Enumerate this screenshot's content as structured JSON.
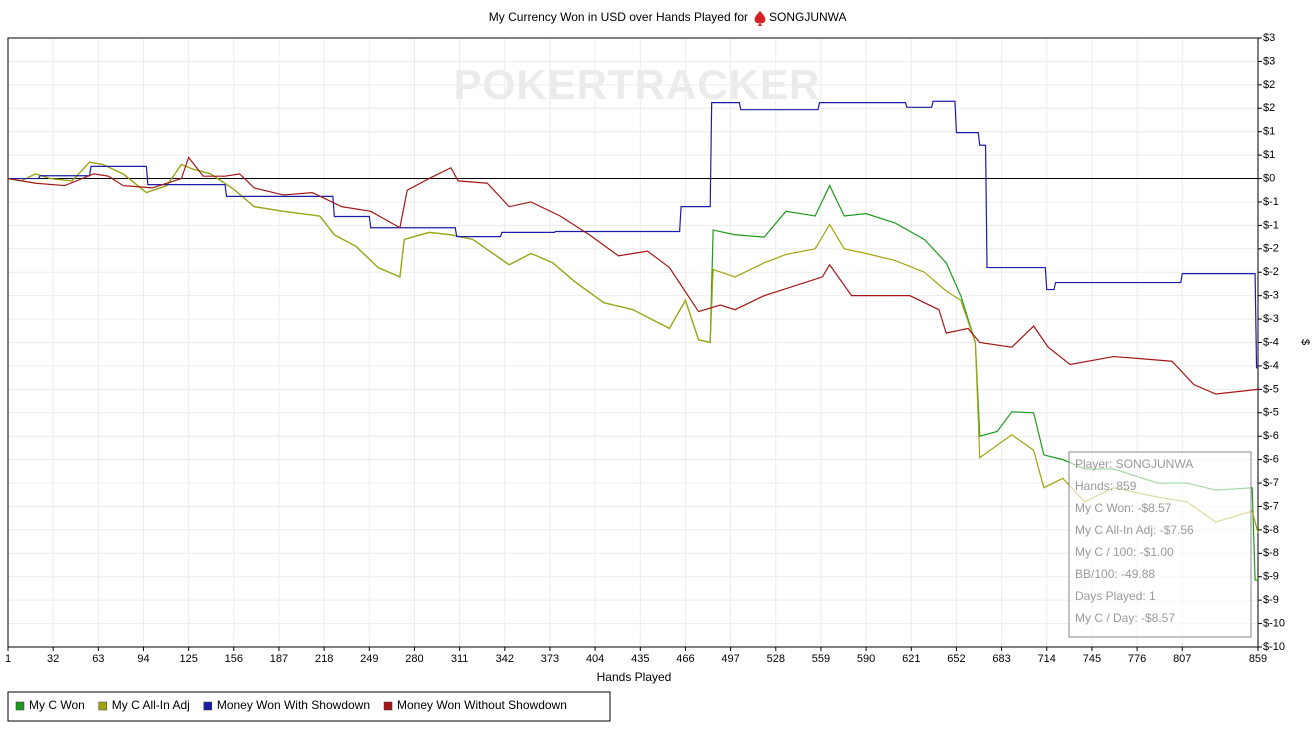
{
  "chart_data": {
    "type": "line",
    "title": "My Currency Won in USD over Hands Played for",
    "player": "SONGJUNWA",
    "watermark": "POKERTRACKER",
    "x_label": "Hands Played",
    "y_label": "$",
    "xlim": [
      1,
      859
    ],
    "ylim": [
      -10,
      3
    ],
    "xticks": [
      1,
      32,
      63,
      94,
      125,
      156,
      187,
      218,
      249,
      280,
      311,
      342,
      373,
      404,
      435,
      466,
      497,
      528,
      559,
      590,
      621,
      652,
      683,
      714,
      745,
      776,
      807,
      859
    ],
    "yticks": [
      {
        "value": 3,
        "label": "$3"
      },
      {
        "value": 2.5,
        "label": "$3"
      },
      {
        "value": 2,
        "label": "$2"
      },
      {
        "value": 1.5,
        "label": "$2"
      },
      {
        "value": 1,
        "label": "$1"
      },
      {
        "value": 0.5,
        "label": "$1"
      },
      {
        "value": 0,
        "label": "$0"
      },
      {
        "value": -0.5,
        "label": "$-1"
      },
      {
        "value": -1,
        "label": "$-1"
      },
      {
        "value": -1.5,
        "label": "$-2"
      },
      {
        "value": -2,
        "label": "$-2"
      },
      {
        "value": -2.5,
        "label": "$-3"
      },
      {
        "value": -3,
        "label": "$-3"
      },
      {
        "value": -3.5,
        "label": "$-4"
      },
      {
        "value": -4,
        "label": "$-4"
      },
      {
        "value": -4.5,
        "label": "$-5"
      },
      {
        "value": -5,
        "label": "$-5"
      },
      {
        "value": -5.5,
        "label": "$-6"
      },
      {
        "value": -6,
        "label": "$-6"
      },
      {
        "value": -6.5,
        "label": "$-7"
      },
      {
        "value": -7,
        "label": "$-7"
      },
      {
        "value": -7.5,
        "label": "$-8"
      },
      {
        "value": -8,
        "label": "$-8"
      },
      {
        "value": -8.5,
        "label": "$-9"
      },
      {
        "value": -9,
        "label": "$-9"
      },
      {
        "value": -9.5,
        "label": "$-10"
      },
      {
        "value": -10,
        "label": "$-10"
      }
    ],
    "grid": true,
    "legend": "bottom-left",
    "series": [
      {
        "name": "My C Won",
        "color": "#1e9a1e",
        "x": [
          1,
          10,
          20,
          30,
          45,
          57,
          66,
          80,
          96,
          110,
          120,
          128,
          140,
          156,
          170,
          190,
          215,
          225,
          240,
          255,
          270,
          273,
          290,
          305,
          320,
          345,
          360,
          375,
          390,
          410,
          430,
          455,
          466,
          475,
          483,
          485,
          500,
          520,
          535,
          555,
          565,
          575,
          590,
          610,
          630,
          645,
          655,
          665,
          668,
          680,
          690,
          705,
          712,
          725,
          740,
          760,
          790,
          810,
          830,
          855,
          857,
          859
        ],
        "values": [
          0,
          -0.05,
          0.1,
          0,
          -0.05,
          0.35,
          0.3,
          0.1,
          -0.3,
          -0.15,
          0.3,
          0.2,
          0.1,
          -0.23,
          -0.6,
          -0.7,
          -0.8,
          -1.2,
          -1.45,
          -1.9,
          -2.1,
          -1.3,
          -1.15,
          -1.2,
          -1.3,
          -1.84,
          -1.6,
          -1.8,
          -2.2,
          -2.65,
          -2.8,
          -3.2,
          -2.6,
          -3.44,
          -3.5,
          -1.1,
          -1.2,
          -1.25,
          -0.7,
          -0.8,
          -0.15,
          -0.8,
          -0.75,
          -0.95,
          -1.3,
          -1.8,
          -2.5,
          -3.5,
          -5.5,
          -5.4,
          -4.98,
          -5.0,
          -5.9,
          -6.0,
          -6.2,
          -6.2,
          -6.5,
          -6.5,
          -6.65,
          -6.6,
          -8.57,
          -8.57
        ]
      },
      {
        "name": "My C All-In Adj",
        "color": "#a4a40c",
        "x": [
          1,
          10,
          20,
          30,
          45,
          57,
          66,
          80,
          96,
          110,
          120,
          128,
          140,
          156,
          170,
          190,
          215,
          225,
          240,
          255,
          270,
          273,
          290,
          305,
          320,
          345,
          360,
          375,
          390,
          410,
          430,
          455,
          466,
          475,
          483,
          485,
          500,
          520,
          535,
          555,
          565,
          575,
          590,
          610,
          630,
          645,
          655,
          665,
          668,
          690,
          705,
          712,
          725,
          740,
          760,
          790,
          810,
          830,
          855,
          859
        ],
        "values": [
          0,
          -0.05,
          0.1,
          0,
          -0.05,
          0.35,
          0.3,
          0.1,
          -0.3,
          -0.15,
          0.3,
          0.2,
          0.1,
          -0.23,
          -0.6,
          -0.7,
          -0.8,
          -1.2,
          -1.45,
          -1.9,
          -2.1,
          -1.3,
          -1.15,
          -1.2,
          -1.3,
          -1.84,
          -1.6,
          -1.8,
          -2.2,
          -2.65,
          -2.8,
          -3.2,
          -2.6,
          -3.44,
          -3.5,
          -1.94,
          -2.1,
          -1.8,
          -1.62,
          -1.5,
          -0.98,
          -1.5,
          -1.6,
          -1.75,
          -2.0,
          -2.4,
          -2.6,
          -3.5,
          -5.96,
          -5.47,
          -5.8,
          -6.6,
          -6.4,
          -6.9,
          -6.6,
          -6.8,
          -6.9,
          -7.33,
          -7.1,
          -7.56
        ]
      },
      {
        "name": "Money Won With Showdown",
        "color": "#1c1ca8",
        "x": [
          1,
          22,
          23,
          57,
          58,
          96,
          97,
          150,
          151,
          224,
          225,
          249,
          250,
          308,
          309,
          339,
          340,
          376,
          377,
          462,
          463,
          483,
          484,
          503,
          504,
          557,
          558,
          617,
          618,
          635,
          636,
          651,
          652,
          667,
          668,
          672,
          673,
          713,
          714,
          719,
          720,
          806,
          807,
          857,
          858,
          859
        ],
        "values": [
          0,
          0,
          0.06,
          0.06,
          0.26,
          0.26,
          -0.13,
          -0.13,
          -0.38,
          -0.38,
          -0.81,
          -0.81,
          -1.05,
          -1.05,
          -1.24,
          -1.24,
          -1.15,
          -1.15,
          -1.13,
          -1.13,
          -0.6,
          -0.6,
          1.62,
          1.62,
          1.47,
          1.47,
          1.62,
          1.62,
          1.52,
          1.52,
          1.65,
          1.65,
          0.98,
          0.98,
          0.71,
          0.71,
          -1.9,
          -1.9,
          -2.37,
          -2.37,
          -2.22,
          -2.22,
          -2.03,
          -2.03,
          -4.04,
          -4.04
        ]
      },
      {
        "name": "Money Won Without Showdown",
        "color": "#a51616",
        "x": [
          1,
          20,
          40,
          60,
          70,
          80,
          100,
          120,
          125,
          135,
          150,
          160,
          170,
          190,
          210,
          230,
          250,
          270,
          275,
          290,
          305,
          310,
          330,
          345,
          360,
          380,
          400,
          420,
          440,
          455,
          475,
          490,
          500,
          520,
          540,
          560,
          565,
          580,
          600,
          620,
          640,
          645,
          660,
          668,
          690,
          705,
          715,
          730,
          760,
          780,
          800,
          815,
          830,
          859
        ],
        "values": [
          0,
          -0.1,
          -0.15,
          0.1,
          0.05,
          -0.15,
          -0.2,
          0,
          0.45,
          0.05,
          0.05,
          0.1,
          -0.2,
          -0.35,
          -0.3,
          -0.6,
          -0.7,
          -1.05,
          -0.25,
          0,
          0.23,
          -0.05,
          -0.1,
          -0.6,
          -0.5,
          -0.8,
          -1.2,
          -1.65,
          -1.55,
          -1.9,
          -2.84,
          -2.7,
          -2.8,
          -2.5,
          -2.3,
          -2.1,
          -1.84,
          -2.5,
          -2.5,
          -2.5,
          -2.8,
          -3.3,
          -3.2,
          -3.5,
          -3.6,
          -3.15,
          -3.6,
          -3.97,
          -3.8,
          -3.85,
          -3.9,
          -4.4,
          -4.6,
          -4.5
        ]
      }
    ],
    "annotations": [
      "Player: SONGJUNWA",
      "Hands: 859",
      "My C Won: -$8.57",
      "My C All-In Adj: -$7.56",
      "My C / 100: -$1.00",
      "BB/100: -49.88",
      "Days Played: 1",
      "My C / Day: -$8.57"
    ]
  }
}
